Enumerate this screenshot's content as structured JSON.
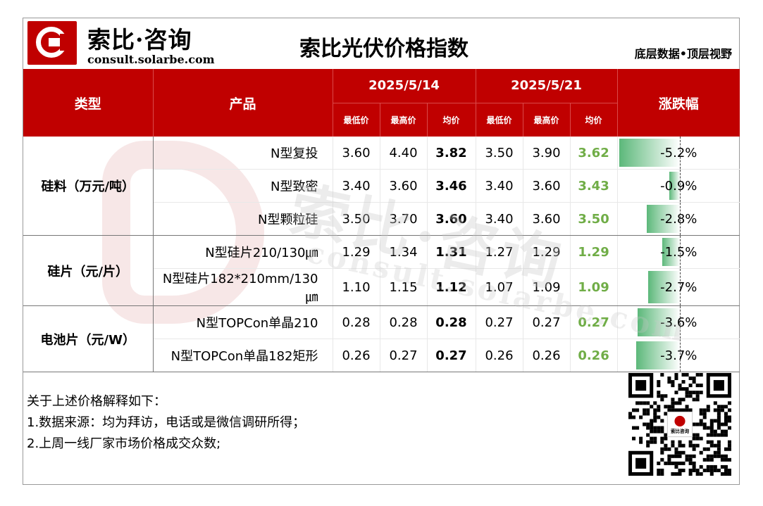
{
  "brand": {
    "name": "索比·咨询",
    "url": "consult.solarbe.com",
    "slogan": "底层数据•顶层视野"
  },
  "title": "索比光伏价格指数",
  "table": {
    "headers": {
      "type": "类型",
      "product": "产品",
      "date1": "2025/5/14",
      "date2": "2025/5/21",
      "change": "涨跌幅",
      "low": "最低价",
      "high": "最高价",
      "avg": "均价"
    },
    "groups": [
      {
        "category": "硅料（万元/吨）",
        "rows": [
          {
            "product": "N型复投",
            "low1": "3.60",
            "high1": "4.40",
            "avg1": "3.82",
            "low2": "3.50",
            "high2": "3.90",
            "avg2": "3.62",
            "change": "-5.2%",
            "change_value": -5.2
          },
          {
            "product": "N型致密",
            "low1": "3.40",
            "high1": "3.60",
            "avg1": "3.46",
            "low2": "3.40",
            "high2": "3.60",
            "avg2": "3.43",
            "change": "-0.9%",
            "change_value": -0.9
          },
          {
            "product": "N型颗粒硅",
            "low1": "3.50",
            "high1": "3.70",
            "avg1": "3.60",
            "low2": "3.40",
            "high2": "3.60",
            "avg2": "3.50",
            "change": "-2.8%",
            "change_value": -2.8
          }
        ]
      },
      {
        "category": "硅片（元/片）",
        "rows": [
          {
            "product": "N型硅片210/130㎛",
            "low1": "1.29",
            "high1": "1.34",
            "avg1": "1.31",
            "low2": "1.27",
            "high2": "1.29",
            "avg2": "1.29",
            "change": "-1.5%",
            "change_value": -1.5
          },
          {
            "product": "N型硅片182*210mm/130㎛",
            "low1": "1.10",
            "high1": "1.15",
            "avg1": "1.12",
            "low2": "1.07",
            "high2": "1.09",
            "avg2": "1.09",
            "change": "-2.7%",
            "change_value": -2.7
          }
        ]
      },
      {
        "category": "电池片（元/W）",
        "rows": [
          {
            "product": "N型TOPCon单晶210",
            "low1": "0.28",
            "high1": "0.28",
            "avg1": "0.28",
            "low2": "0.27",
            "high2": "0.27",
            "avg2": "0.27",
            "change": "-3.6%",
            "change_value": -3.6
          },
          {
            "product": "N型TOPCon单晶182矩形",
            "low1": "0.26",
            "high1": "0.27",
            "avg1": "0.27",
            "low2": "0.26",
            "high2": "0.26",
            "avg2": "0.26",
            "change": "-3.7%",
            "change_value": -3.7
          }
        ]
      }
    ]
  },
  "notes": {
    "heading": "关于上述价格解释如下：",
    "items": [
      "1.数据来源：均为拜访，电话或是微信调研所得；",
      "2.上周一线厂家市场价格成交众数;"
    ]
  },
  "qr": {
    "label": "索比咨询"
  },
  "watermark": {
    "main": "索比·咨询",
    "sub": "consult.solarbe.com"
  },
  "colors": {
    "brand_red": "#c00000",
    "avg_green": "#70ad47",
    "bar_green": "#5cb87a"
  }
}
